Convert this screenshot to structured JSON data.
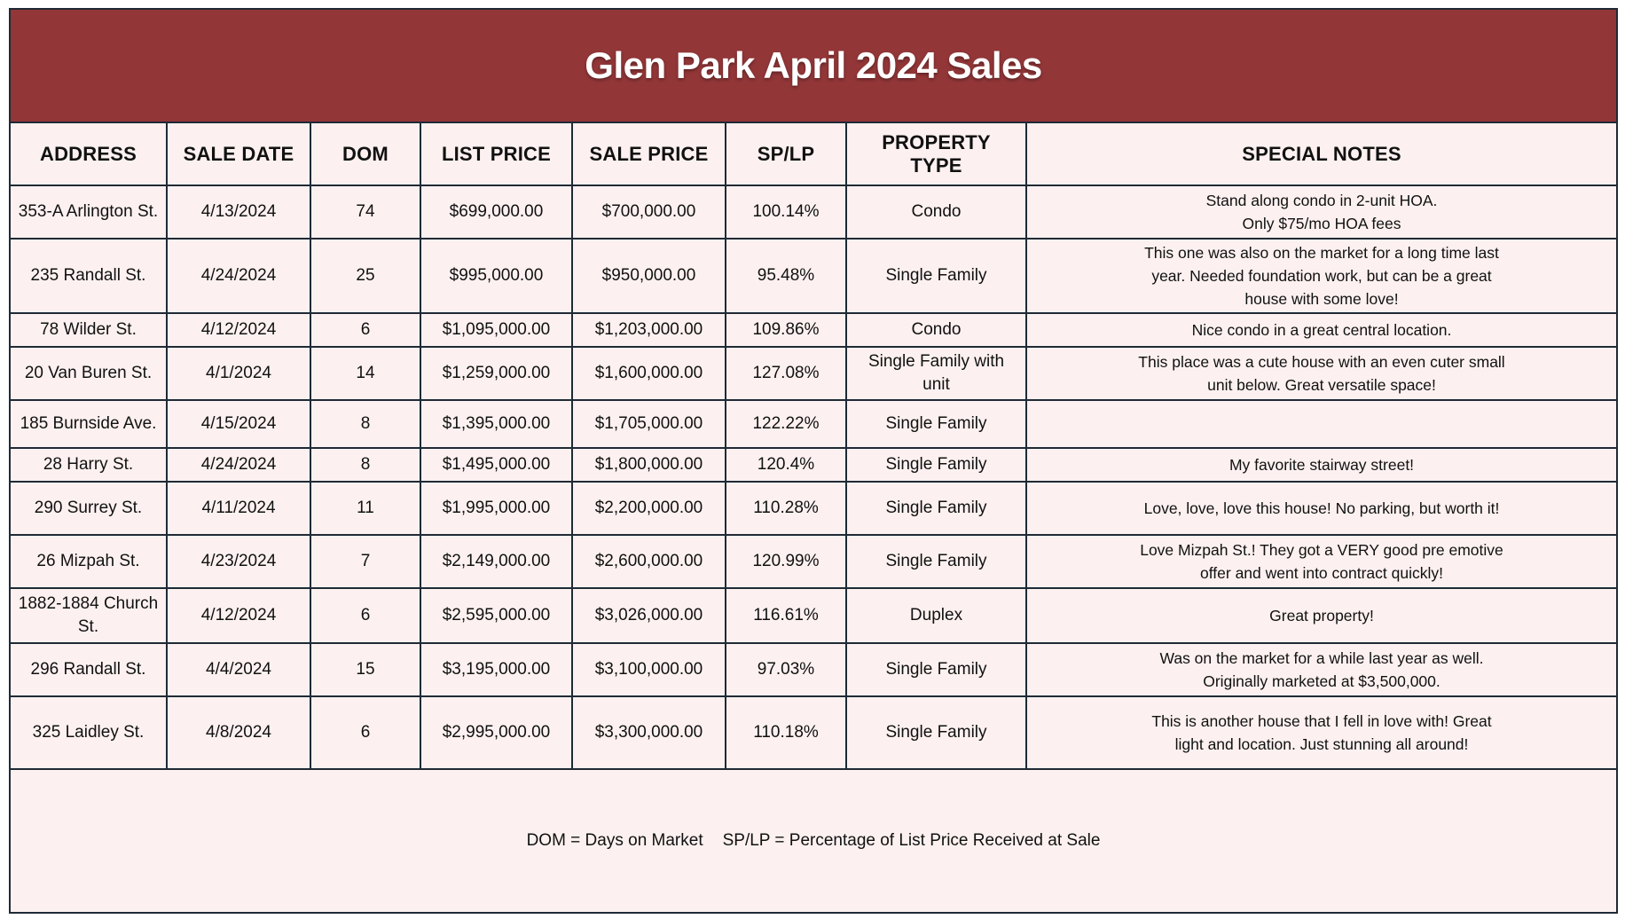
{
  "title": "Glen Park April 2024 Sales",
  "columns": [
    "ADDRESS",
    "SALE DATE",
    "DOM",
    "LIST PRICE",
    "SALE PRICE",
    "SP/LP",
    "PROPERTY TYPE",
    "SPECIAL NOTES"
  ],
  "rows": [
    {
      "address": "353-A Arlington St.",
      "sale_date": "4/13/2024",
      "dom": "74",
      "list_price": "$699,000.00",
      "sale_price": "$700,000.00",
      "sp_lp": "100.14%",
      "property_type": "Condo",
      "notes": [
        "Stand along condo in 2-unit HOA.",
        "Only $75/mo HOA fees"
      ]
    },
    {
      "address": "235 Randall St.",
      "sale_date": "4/24/2024",
      "dom": "25",
      "list_price": "$995,000.00",
      "sale_price": "$950,000.00",
      "sp_lp": "95.48%",
      "property_type": "Single Family",
      "notes": [
        "This one was also on the market for a long time last",
        "year. Needed foundation work, but can be a great",
        "house with some love!"
      ]
    },
    {
      "address": "78 Wilder St.",
      "sale_date": "4/12/2024",
      "dom": "6",
      "list_price": "$1,095,000.00",
      "sale_price": "$1,203,000.00",
      "sp_lp": "109.86%",
      "property_type": "Condo",
      "notes": [
        "Nice condo in a great central location."
      ]
    },
    {
      "address": "20 Van Buren St.",
      "sale_date": "4/1/2024",
      "dom": "14",
      "list_price": "$1,259,000.00",
      "sale_price": "$1,600,000.00",
      "sp_lp": "127.08%",
      "property_type": "Single Family with unit",
      "notes": [
        "This place was a cute house with an even cuter small",
        "unit below. Great versatile space!"
      ]
    },
    {
      "address": "185 Burnside Ave.",
      "sale_date": "4/15/2024",
      "dom": "8",
      "list_price": "$1,395,000.00",
      "sale_price": "$1,705,000.00",
      "sp_lp": "122.22%",
      "property_type": "Single Family",
      "notes": []
    },
    {
      "address": "28 Harry St.",
      "sale_date": "4/24/2024",
      "dom": "8",
      "list_price": "$1,495,000.00",
      "sale_price": "$1,800,000.00",
      "sp_lp": "120.4%",
      "property_type": "Single Family",
      "notes": [
        "My favorite stairway street!"
      ]
    },
    {
      "address": "290 Surrey St.",
      "sale_date": "4/11/2024",
      "dom": "11",
      "list_price": "$1,995,000.00",
      "sale_price": "$2,200,000.00",
      "sp_lp": "110.28%",
      "property_type": "Single Family",
      "notes": [
        "Love, love, love this house! No parking, but worth it!"
      ]
    },
    {
      "address": "26 Mizpah St.",
      "sale_date": "4/23/2024",
      "dom": "7",
      "list_price": "$2,149,000.00",
      "sale_price": "$2,600,000.00",
      "sp_lp": "120.99%",
      "property_type": "Single Family",
      "notes": [
        "Love Mizpah St.! They got a VERY good pre emotive",
        "offer and went into contract quickly!"
      ]
    },
    {
      "address": "1882-1884 Church St.",
      "sale_date": "4/12/2024",
      "dom": "6",
      "list_price": "$2,595,000.00",
      "sale_price": "$3,026,000.00",
      "sp_lp": "116.61%",
      "property_type": "Duplex",
      "notes": [
        "Great property!"
      ]
    },
    {
      "address": "296 Randall St.",
      "sale_date": "4/4/2024",
      "dom": "15",
      "list_price": "$3,195,000.00",
      "sale_price": "$3,100,000.00",
      "sp_lp": "97.03%",
      "property_type": "Single Family",
      "notes": [
        "Was on the market for a while last year as well.",
        "Originally marketed at $3,500,000."
      ]
    },
    {
      "address": "325 Laidley St.",
      "sale_date": "4/8/2024",
      "dom": "6",
      "list_price": "$2,995,000.00",
      "sale_price": "$3,300,000.00",
      "sp_lp": "110.18%",
      "property_type": "Single Family",
      "notes": [
        "This is another house that I fell in love with! Great",
        "light and location. Just stunning all around!"
      ]
    }
  ],
  "footer": {
    "dom_legend": "DOM = Days on Market",
    "splp_legend": "SP/LP = Percentage of List Price Received at Sale"
  },
  "colors": {
    "header_band": "#923638",
    "background": "#fcf1f0",
    "grid_lines": "#1f2a36"
  }
}
